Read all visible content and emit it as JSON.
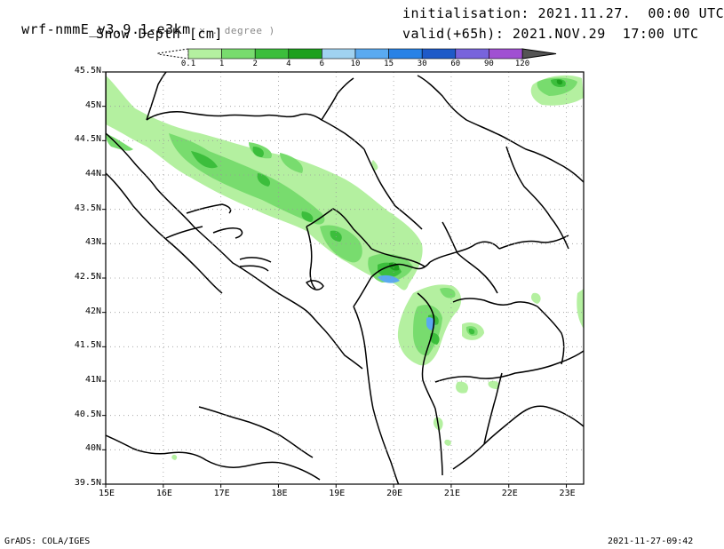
{
  "header": {
    "model": "wrf-nmmE_v3.9.1-e3km",
    "projection_note": "x . degree )",
    "variable": "Snow Depth [cm]",
    "init_label": "initialisation:",
    "init_value": "2021.11.27.  00:00 UTC",
    "valid_label": "valid(+65h):",
    "valid_value": "2021.NOV.29  17:00 UTC"
  },
  "colorbar": {
    "levels": [
      "0.1",
      "1",
      "2",
      "4",
      "6",
      "10",
      "15",
      "30",
      "60",
      "90",
      "120"
    ],
    "colors": [
      "#b4f0a0",
      "#78dc6e",
      "#3cbe3c",
      "#1ea01e",
      "#a0d2f0",
      "#5aaaf0",
      "#2882e6",
      "#1e5ac8",
      "#7864dc",
      "#a050d2"
    ]
  },
  "map": {
    "lon_ticks": [
      "15E",
      "16E",
      "17E",
      "18E",
      "19E",
      "20E",
      "21E",
      "22E",
      "23E"
    ],
    "lat_ticks": [
      "45.5N",
      "45N",
      "44.5N",
      "44N",
      "43.5N",
      "43N",
      "42.5N",
      "42N",
      "41.5N",
      "41N",
      "40.5N",
      "40N",
      "39.5N"
    ],
    "lon_range": [
      15,
      23.3
    ],
    "lat_range": [
      39.5,
      45.5
    ]
  },
  "footer": {
    "left": "GrADS: COLA/IGES",
    "right": "2021-11-27-09:42"
  }
}
